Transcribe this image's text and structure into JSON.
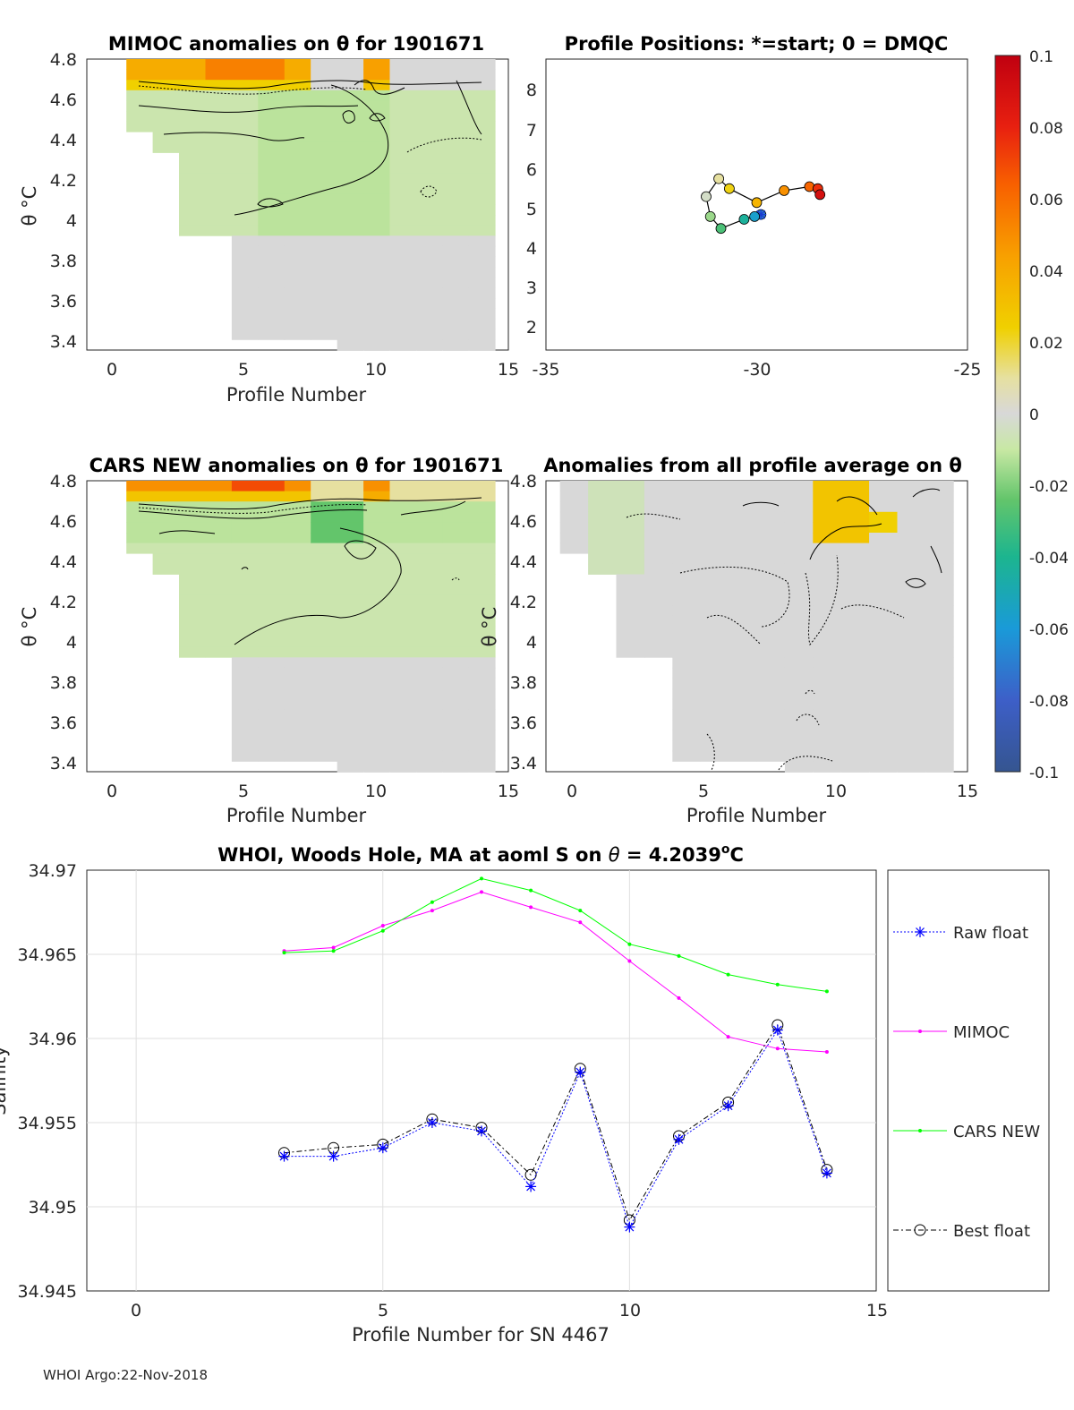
{
  "figure": {
    "footer": "WHOI Argo:22-Nov-2018",
    "colorbar": {
      "ticks": [
        "0.1",
        "0.08",
        "0.06",
        "0.04",
        "0.02",
        "0",
        "-0.02",
        "-0.04",
        "-0.06",
        "-0.08",
        "-0.1"
      ],
      "range": [
        -0.1,
        0.1
      ]
    }
  },
  "chart_data": [
    {
      "type": "heatmap",
      "title": "MIMOC anomalies on θ  for 1901671",
      "xlabel": "Profile Number",
      "ylabel": "θ °C",
      "xlim": [
        -1,
        15
      ],
      "ylim": [
        3.4,
        4.8
      ],
      "xticks": [
        "0",
        "5",
        "10",
        "15"
      ],
      "yticks": [
        "4.8",
        "4.6",
        "4.4",
        "4.2",
        "4",
        "3.8",
        "3.6",
        "3.4"
      ],
      "note": "profiles 1-14, shallow anomalies up to ~0.05 near 4.75°C, weak negative (-0.01) between 4.0 and 4.6°C"
    },
    {
      "type": "scatter",
      "title": "Profile Positions: *=start; 0 = DMQC",
      "xlim": [
        -35,
        -25
      ],
      "ylim": [
        1.5,
        8.8
      ],
      "xticks": [
        "-35",
        "-30",
        "-25"
      ],
      "yticks": [
        "8",
        "7",
        "6",
        "5",
        "4",
        "3",
        "2"
      ],
      "points": [
        {
          "lon": -29.9,
          "lat": 4.9,
          "start": true
        },
        {
          "lon": -30.05,
          "lat": 4.85
        },
        {
          "lon": -30.3,
          "lat": 4.78
        },
        {
          "lon": -30.85,
          "lat": 4.55
        },
        {
          "lon": -31.1,
          "lat": 4.85
        },
        {
          "lon": -31.2,
          "lat": 5.35
        },
        {
          "lon": -30.9,
          "lat": 5.8
        },
        {
          "lon": -30.65,
          "lat": 5.55
        },
        {
          "lon": -30.0,
          "lat": 5.2
        },
        {
          "lon": -29.35,
          "lat": 5.5
        },
        {
          "lon": -28.75,
          "lat": 5.6
        },
        {
          "lon": -28.55,
          "lat": 5.55
        },
        {
          "lon": -28.5,
          "lat": 5.4
        }
      ]
    },
    {
      "type": "heatmap",
      "title": "CARS NEW anomalies on θ for 1901671",
      "xlabel": "Profile Number",
      "ylabel": "θ °C",
      "xlim": [
        -1,
        15
      ],
      "ylim": [
        3.4,
        4.8
      ],
      "xticks": [
        "0",
        "5",
        "10",
        "15"
      ],
      "yticks": [
        "4.8",
        "4.6",
        "4.4",
        "4.2",
        "4",
        "3.8",
        "3.6",
        "3.4"
      ],
      "note": "profiles 1-14, shallow anomalies up to ~0.06 near 4.78°C, negative (-0.02) near 4.6°C"
    },
    {
      "type": "heatmap",
      "title": "Anomalies from all profile average on θ",
      "xlabel": "Profile Number",
      "ylabel": "θ °C",
      "xlim": [
        0,
        15
      ],
      "ylim": [
        3.4,
        4.8
      ],
      "xticks": [
        "0",
        "5",
        "10",
        "15"
      ],
      "yticks": [
        "4.8",
        "4.6",
        "4.4",
        "4.2",
        "4",
        "3.8",
        "3.6",
        "3.4"
      ],
      "note": "mostly near zero; positive ~0.03 near profile 10 at 4.6-4.75°C"
    },
    {
      "type": "line",
      "title": "WHOI, Woods Hole, MA at aoml S on θ = 4.2039°C",
      "title_main": "WHOI, Woods Hole, MA at aoml S on ",
      "title_theta": "θ",
      "title_eq": " = 4.2039",
      "title_sup": "o",
      "title_unit": "C",
      "xlabel": "Profile Number for SN 4467",
      "ylabel": "Salinity",
      "xlim": [
        -1,
        15
      ],
      "ylim": [
        34.945,
        34.97
      ],
      "xticks": [
        "0",
        "5",
        "10",
        "15"
      ],
      "yticks": [
        "34.97",
        "34.965",
        "34.96",
        "34.955",
        "34.95",
        "34.945"
      ],
      "x": [
        3,
        4,
        5,
        6,
        7,
        8,
        9,
        10,
        11,
        12,
        13,
        14
      ],
      "series": [
        {
          "name": "Raw float",
          "color": "#0000ff",
          "values": [
            34.953,
            34.953,
            34.9535,
            34.955,
            34.9545,
            34.9512,
            34.958,
            34.9488,
            34.954,
            34.956,
            34.9605,
            34.952
          ]
        },
        {
          "name": "MIMOC",
          "color": "#ff00ff",
          "values": [
            34.9652,
            34.9654,
            34.9667,
            34.9676,
            34.9687,
            34.9678,
            34.9669,
            34.9646,
            34.9624,
            34.9601,
            34.9594,
            34.9592
          ]
        },
        {
          "name": "CARS NEW",
          "color": "#00ff00",
          "values": [
            34.9651,
            34.9652,
            34.9664,
            34.9681,
            34.9695,
            34.9688,
            34.9676,
            34.9656,
            34.9649,
            34.9638,
            34.9632,
            34.9628
          ]
        },
        {
          "name": "Best float",
          "color": "#000000",
          "values": [
            34.9532,
            34.9535,
            34.9537,
            34.9552,
            34.9547,
            34.9519,
            34.9582,
            34.9492,
            34.9542,
            34.9562,
            34.9608,
            34.9522
          ]
        }
      ]
    }
  ]
}
